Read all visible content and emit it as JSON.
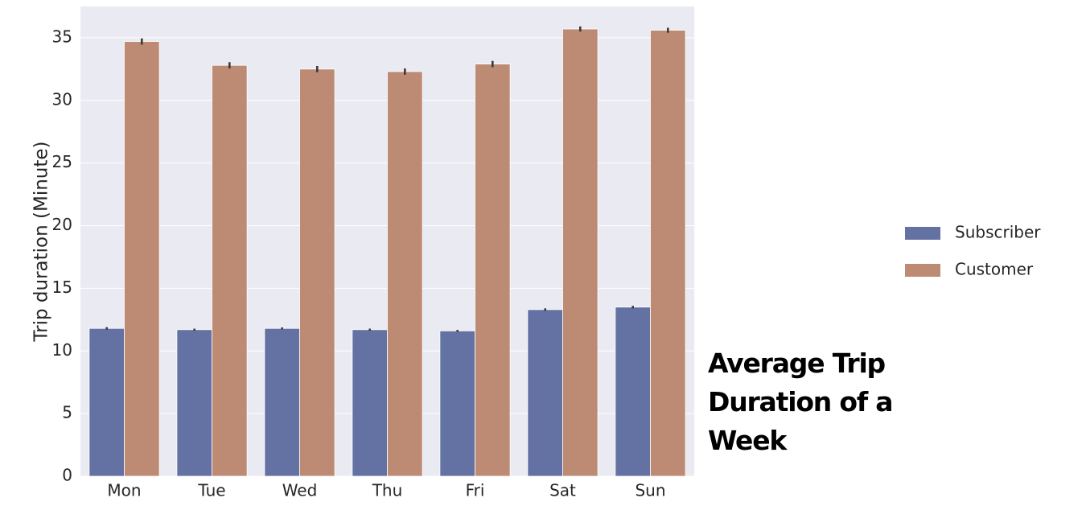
{
  "chart_data": {
    "type": "bar",
    "title": "Average Trip Duration of a Week",
    "xlabel": "",
    "ylabel": "Trip duration (Minute)",
    "categories": [
      "Mon",
      "Tue",
      "Wed",
      "Thu",
      "Fri",
      "Sat",
      "Sun"
    ],
    "series": [
      {
        "name": "Subscriber",
        "color": "#6471a3",
        "values": [
          11.8,
          11.7,
          11.8,
          11.7,
          11.6,
          13.3,
          13.5
        ],
        "error": [
          0.1,
          0.08,
          0.08,
          0.08,
          0.08,
          0.1,
          0.1
        ]
      },
      {
        "name": "Customer",
        "color": "#bd8a74",
        "values": [
          34.7,
          32.8,
          32.5,
          32.3,
          32.9,
          35.7,
          35.6
        ],
        "error": [
          0.25,
          0.25,
          0.25,
          0.25,
          0.25,
          0.2,
          0.2
        ]
      }
    ],
    "ylim": [
      0,
      37.5
    ],
    "yticks": [
      0,
      5,
      10,
      15,
      20,
      25,
      30,
      35
    ],
    "grid": true,
    "legend_position": "right",
    "background": "#eaeaf2"
  }
}
